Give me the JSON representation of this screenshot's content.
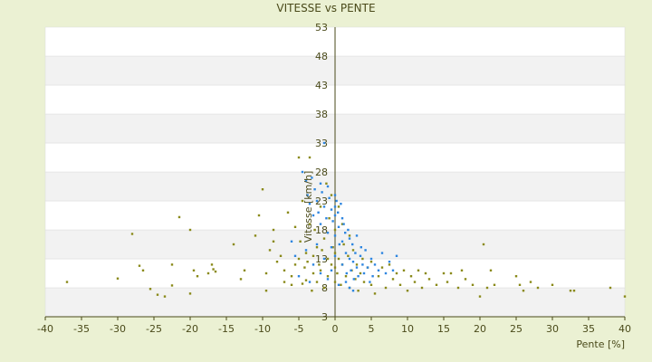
{
  "chart_data": {
    "type": "scatter",
    "title": "VITESSE vs PENTE",
    "xlabel": "Pente [%]",
    "ylabel": "Vitesse [km/h]",
    "xlim": [
      -40,
      40
    ],
    "ylim": [
      3,
      53
    ],
    "xticks": [
      -40,
      -35,
      -30,
      -25,
      -20,
      -15,
      -10,
      -5,
      0,
      5,
      10,
      15,
      20,
      25,
      30,
      35,
      40
    ],
    "yticks": [
      3,
      8,
      13,
      18,
      23,
      28,
      33,
      38,
      43,
      48,
      53
    ],
    "grid": "alternating horizontal bands",
    "legend": "none",
    "colors": {
      "background": "#ebf1d3",
      "plot_band_light": "#ffffff",
      "plot_band_dark": "#f2f2f2",
      "axis": "#4a4a1a",
      "series_1": "#8a8a1a",
      "series_2": "#2e86e0"
    },
    "series": [
      {
        "points": [
          [
            -37,
            9.0
          ],
          [
            -30,
            9.6
          ],
          [
            -28,
            17.3
          ],
          [
            -27,
            11.8
          ],
          [
            -26.5,
            11.0
          ],
          [
            -25.5,
            7.8
          ],
          [
            -24.5,
            6.8
          ],
          [
            -23.5,
            6.5
          ],
          [
            -22.5,
            8.4
          ],
          [
            -22.5,
            12.0
          ],
          [
            -21.5,
            20.2
          ],
          [
            -20,
            7.0
          ],
          [
            -20,
            18.0
          ],
          [
            -19.5,
            11.0
          ],
          [
            -19,
            10.0
          ],
          [
            -17.5,
            10.5
          ],
          [
            -17,
            12.0
          ],
          [
            -16.8,
            11.2
          ],
          [
            -16.5,
            10.8
          ],
          [
            -14,
            15.5
          ],
          [
            -13,
            9.5
          ],
          [
            -12.5,
            11.0
          ],
          [
            -11,
            17.0
          ],
          [
            -10.5,
            20.5
          ],
          [
            -10,
            25.0
          ],
          [
            -9.5,
            7.5
          ],
          [
            -9.5,
            10.5
          ],
          [
            -9,
            14.5
          ],
          [
            -8.5,
            16.0
          ],
          [
            -8.5,
            18.0
          ],
          [
            -8,
            12.5
          ],
          [
            -7.5,
            13.5
          ],
          [
            -7,
            9.0
          ],
          [
            -7,
            11.0
          ],
          [
            -6.5,
            21.0
          ],
          [
            -6,
            8.5
          ],
          [
            -6,
            10.0
          ],
          [
            -5.5,
            12.0
          ],
          [
            -5.5,
            18.5
          ],
          [
            -5,
            13.0
          ],
          [
            -5,
            30.5
          ],
          [
            -4.8,
            16.0
          ],
          [
            -4.5,
            8.7
          ],
          [
            -4.5,
            23.0
          ],
          [
            -4.2,
            11.5
          ],
          [
            -4,
            9.3
          ],
          [
            -4,
            14.0
          ],
          [
            -3.8,
            12.5
          ],
          [
            -3.5,
            19.0
          ],
          [
            -3.5,
            30.5
          ],
          [
            -3.2,
            7.5
          ],
          [
            -3,
            13.5
          ],
          [
            -3,
            10.5
          ],
          [
            -2.8,
            18.0
          ],
          [
            -2.5,
            15.0
          ],
          [
            -2.5,
            9.0
          ],
          [
            -2.2,
            12.0
          ],
          [
            -2,
            22.0
          ],
          [
            -2,
            11.0
          ],
          [
            -1.8,
            14.5
          ],
          [
            -1.5,
            8.0
          ],
          [
            -1.5,
            16.5
          ],
          [
            -1.2,
            26.0
          ],
          [
            -1,
            10.0
          ],
          [
            -1,
            13.0
          ],
          [
            -0.8,
            20.0
          ],
          [
            -0.5,
            12.0
          ],
          [
            -0.5,
            24.0
          ],
          [
            -0.3,
            15.0
          ],
          [
            0,
            9.0
          ],
          [
            0,
            11.5
          ],
          [
            0,
            14.0
          ],
          [
            0,
            18.0
          ],
          [
            0.3,
            10.5
          ],
          [
            0.5,
            13.0
          ],
          [
            0.5,
            22.0
          ],
          [
            0.8,
            8.5
          ],
          [
            1,
            12.0
          ],
          [
            1,
            19.0
          ],
          [
            1.2,
            15.5
          ],
          [
            1.5,
            10.0
          ],
          [
            1.8,
            13.5
          ],
          [
            2,
            8.0
          ],
          [
            2,
            17.0
          ],
          [
            2.3,
            11.0
          ],
          [
            2.5,
            14.5
          ],
          [
            2.8,
            9.5
          ],
          [
            3,
            12.0
          ],
          [
            3.2,
            7.5
          ],
          [
            3.5,
            10.5
          ],
          [
            3.8,
            13.0
          ],
          [
            4,
            9.0
          ],
          [
            4.5,
            11.5
          ],
          [
            5,
            8.5
          ],
          [
            5,
            12.5
          ],
          [
            5.5,
            7.0
          ],
          [
            6,
            10.0
          ],
          [
            6.5,
            11.5
          ],
          [
            7,
            8.0
          ],
          [
            7.5,
            12.0
          ],
          [
            8,
            9.5
          ],
          [
            8.5,
            10.5
          ],
          [
            9,
            8.5
          ],
          [
            9.5,
            11.0
          ],
          [
            10,
            7.5
          ],
          [
            10.5,
            10.0
          ],
          [
            11,
            9.0
          ],
          [
            11.5,
            11.0
          ],
          [
            12,
            8.0
          ],
          [
            12.5,
            10.5
          ],
          [
            13,
            9.5
          ],
          [
            14,
            8.5
          ],
          [
            15,
            10.5
          ],
          [
            15.5,
            9.0
          ],
          [
            16,
            10.5
          ],
          [
            17,
            8.0
          ],
          [
            17.5,
            11.0
          ],
          [
            18,
            9.5
          ],
          [
            19,
            8.5
          ],
          [
            20,
            6.5
          ],
          [
            20.5,
            15.5
          ],
          [
            21,
            8.0
          ],
          [
            21.5,
            11.0
          ],
          [
            22,
            8.5
          ],
          [
            25,
            10.0
          ],
          [
            25.5,
            8.5
          ],
          [
            26,
            7.5
          ],
          [
            27,
            9.0
          ],
          [
            28,
            8.0
          ],
          [
            30,
            8.5
          ],
          [
            32.5,
            7.5
          ],
          [
            33,
            7.5
          ],
          [
            38,
            8.0
          ],
          [
            40,
            6.5
          ]
        ]
      },
      {
        "points": [
          [
            -4.5,
            28.0
          ],
          [
            -4,
            26.5
          ],
          [
            -3.8,
            24.0
          ],
          [
            -3.5,
            22.5
          ],
          [
            -3.2,
            27.0
          ],
          [
            -3,
            20.5
          ],
          [
            -2.8,
            25.0
          ],
          [
            -2.5,
            23.0
          ],
          [
            -2.3,
            21.0
          ],
          [
            -2,
            26.0
          ],
          [
            -2,
            19.0
          ],
          [
            -1.8,
            24.5
          ],
          [
            -1.5,
            22.0
          ],
          [
            -1.5,
            33.0
          ],
          [
            -1.2,
            20.0
          ],
          [
            -1,
            25.5
          ],
          [
            -1,
            17.5
          ],
          [
            -0.8,
            23.5
          ],
          [
            -0.5,
            21.5
          ],
          [
            -0.5,
            15.0
          ],
          [
            -0.3,
            19.5
          ],
          [
            0,
            24.0
          ],
          [
            0,
            22.0
          ],
          [
            0,
            20.5
          ],
          [
            0,
            17.0
          ],
          [
            0,
            13.5
          ],
          [
            0.2,
            23.0
          ],
          [
            0.4,
            21.0
          ],
          [
            0.5,
            18.5
          ],
          [
            0.6,
            15.5
          ],
          [
            0.8,
            22.5
          ],
          [
            1,
            20.0
          ],
          [
            1,
            16.0
          ],
          [
            1,
            12.0
          ],
          [
            1.2,
            19.0
          ],
          [
            1.4,
            17.5
          ],
          [
            1.5,
            14.0
          ],
          [
            1.6,
            10.5
          ],
          [
            1.8,
            18.0
          ],
          [
            2,
            16.5
          ],
          [
            2,
            13.0
          ],
          [
            2.2,
            11.0
          ],
          [
            2.4,
            15.5
          ],
          [
            2.5,
            12.5
          ],
          [
            2.6,
            9.5
          ],
          [
            2.8,
            14.0
          ],
          [
            3,
            17.0
          ],
          [
            3,
            11.5
          ],
          [
            3.2,
            10.0
          ],
          [
            3.5,
            13.5
          ],
          [
            3.6,
            15.0
          ],
          [
            3.8,
            12.0
          ],
          [
            4,
            10.5
          ],
          [
            4.2,
            14.5
          ],
          [
            4.5,
            11.5
          ],
          [
            4.8,
            9.0
          ],
          [
            5,
            13.0
          ],
          [
            5.2,
            10.0
          ],
          [
            5.5,
            12.0
          ],
          [
            6,
            11.0
          ],
          [
            6.5,
            14.0
          ],
          [
            7,
            10.5
          ],
          [
            7.5,
            12.5
          ],
          [
            8,
            11.0
          ],
          [
            8.5,
            13.5
          ],
          [
            -6,
            16.0
          ],
          [
            -5.5,
            13.5
          ],
          [
            -5,
            10.0
          ],
          [
            -4,
            14.5
          ],
          [
            -3.5,
            9.0
          ],
          [
            -3,
            12.0
          ],
          [
            -2.5,
            15.5
          ],
          [
            -2,
            10.5
          ],
          [
            -1.5,
            13.0
          ],
          [
            -1,
            9.5
          ],
          [
            -0.5,
            11.0
          ],
          [
            0.5,
            8.5
          ],
          [
            1.5,
            9.0
          ],
          [
            2,
            8.0
          ],
          [
            2.5,
            7.5
          ]
        ]
      }
    ]
  }
}
